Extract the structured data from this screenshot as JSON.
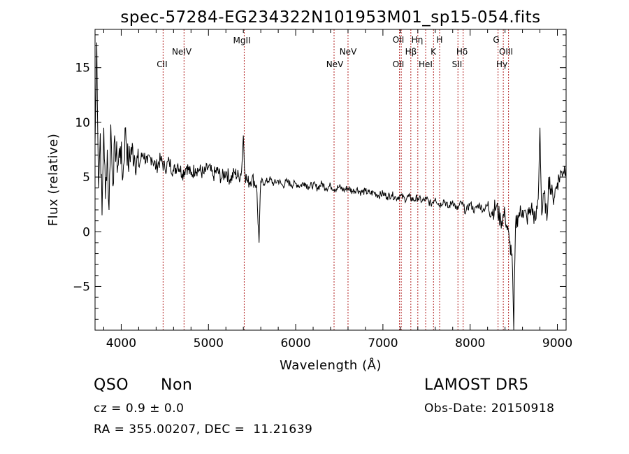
{
  "chart_data": {
    "type": "line",
    "title": "spec-57284-EG234322N101953M01_sp15-054.fits",
    "xlabel": "Wavelength (Å)",
    "ylabel": "Flux (relative)",
    "xlim": [
      3700,
      9100
    ],
    "ylim": [
      -9,
      18.5
    ],
    "x_ticks": [
      4000,
      5000,
      6000,
      7000,
      8000,
      9000
    ],
    "y_ticks": [
      -5,
      0,
      5,
      10,
      15
    ],
    "grid": false,
    "line_color": "#000000",
    "marker_color": "#b22222",
    "series": [
      {
        "x": [
          3700,
          3720,
          3740,
          3760,
          3780,
          3800,
          3820,
          3840,
          3860,
          3880,
          3900,
          3930,
          3960,
          3990,
          4020,
          4050,
          4080,
          4110,
          4150,
          4200,
          4250,
          4300,
          4350,
          4400,
          4450,
          4500,
          4550,
          4600,
          4650,
          4700,
          4750,
          4800,
          4850,
          4900,
          4950,
          5000,
          5050,
          5100,
          5150,
          5200,
          5250,
          5300,
          5350,
          5380,
          5400,
          5420,
          5450,
          5500,
          5550,
          5580,
          5600,
          5650,
          5700,
          5750,
          5800,
          5850,
          5900,
          5950,
          6000,
          6050,
          6100,
          6150,
          6200,
          6250,
          6300,
          6350,
          6400,
          6450,
          6500,
          6550,
          6600,
          6650,
          6700,
          6750,
          6800,
          6850,
          6900,
          6950,
          7000,
          7050,
          7100,
          7150,
          7200,
          7250,
          7300,
          7350,
          7400,
          7450,
          7500,
          7550,
          7600,
          7650,
          7700,
          7750,
          7800,
          7850,
          7900,
          7950,
          8000,
          8050,
          8100,
          8150,
          8200,
          8250,
          8300,
          8350,
          8400,
          8450,
          8480,
          8500,
          8520,
          8550,
          8600,
          8650,
          8700,
          8750,
          8780,
          8800,
          8820,
          8850,
          8880,
          8900,
          8950,
          9000,
          9050,
          9100
        ],
        "values": [
          8.0,
          17.3,
          4.0,
          9.0,
          1.5,
          9.5,
          3.0,
          7.5,
          2.0,
          9.8,
          4.5,
          8.0,
          6.0,
          7.8,
          5.0,
          9.5,
          6.0,
          7.5,
          7.0,
          6.0,
          7.2,
          6.3,
          6.8,
          5.9,
          6.6,
          5.8,
          6.4,
          5.5,
          6.2,
          5.3,
          6.0,
          5.2,
          5.8,
          5.6,
          5.3,
          5.9,
          5.1,
          5.6,
          4.9,
          5.5,
          4.8,
          5.4,
          5.0,
          5.6,
          8.8,
          5.2,
          4.5,
          4.9,
          4.3,
          -1.0,
          4.6,
          4.5,
          4.8,
          4.4,
          4.7,
          4.2,
          4.6,
          4.3,
          4.4,
          4.2,
          4.5,
          4.1,
          4.3,
          4.0,
          4.4,
          4.0,
          4.2,
          3.9,
          4.1,
          3.8,
          4.0,
          3.7,
          3.9,
          3.6,
          3.7,
          3.5,
          3.6,
          3.3,
          3.5,
          3.2,
          3.4,
          3.1,
          3.3,
          3.0,
          3.2,
          2.9,
          3.1,
          2.8,
          3.0,
          2.5,
          3.1,
          2.4,
          2.9,
          2.2,
          2.8,
          2.0,
          2.7,
          1.8,
          2.6,
          1.9,
          2.5,
          2.0,
          2.4,
          1.8,
          2.3,
          1.0,
          1.6,
          -1.0,
          -2.0,
          -9.0,
          0.5,
          1.5,
          2.0,
          1.2,
          2.2,
          1.0,
          3.0,
          9.5,
          1.5,
          3.5,
          1.0,
          5.0,
          3.0,
          4.5,
          5.5,
          6.0
        ]
      }
    ],
    "line_markers": [
      {
        "label": "CII",
        "x": 4480
      },
      {
        "label": "NeIV",
        "x": 4720
      },
      {
        "label": "MgII",
        "x": 5410
      },
      {
        "label": "NeV",
        "x": 6440
      },
      {
        "label": "NeV",
        "x": 6600
      },
      {
        "label": "OII",
        "x": 7190
      },
      {
        "label": "OII",
        "x": 7210
      },
      {
        "label": "Hβ",
        "x": 7320
      },
      {
        "label": "Hη",
        "x": 7400
      },
      {
        "label": "HeI",
        "x": 7490
      },
      {
        "label": "K",
        "x": 7580
      },
      {
        "label": "H",
        "x": 7650
      },
      {
        "label": "SII",
        "x": 7860
      },
      {
        "label": "Hδ",
        "x": 7920
      },
      {
        "label": "G",
        "x": 8320
      },
      {
        "label": "OIII",
        "x": 8380
      },
      {
        "label": "Hγ",
        "x": 8440
      }
    ]
  },
  "info": {
    "class": "QSO",
    "subclass": "Non",
    "survey": "LAMOST DR5",
    "cz": "cz = 0.9 ± 0.0",
    "obs_date": "Obs-Date: 20150918",
    "coords": "RA = 355.00207, DEC =  11.21639"
  }
}
